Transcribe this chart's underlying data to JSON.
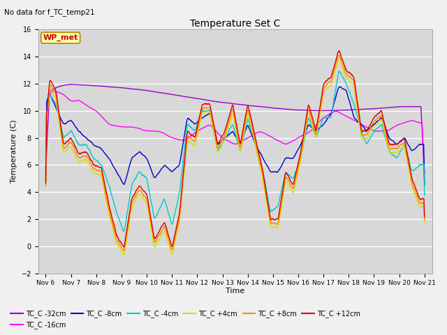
{
  "title": "Temperature Set C",
  "subtitle": "No data for f_TC_temp21",
  "xlabel": "Time",
  "ylabel": "Temperature (C)",
  "ylim": [
    -2,
    16
  ],
  "background_color": "#f0f0f0",
  "plot_bg_color": "#d8d8d8",
  "grid_color": "#ffffff",
  "wp_met_label": "WP_met",
  "legend_entries": [
    {
      "label": "TC_C -32cm",
      "color": "#9900cc"
    },
    {
      "label": "TC_C -16cm",
      "color": "#ff00ff"
    },
    {
      "label": "TC_C -8cm",
      "color": "#0000cc"
    },
    {
      "label": "TC_C -4cm",
      "color": "#00cccc"
    },
    {
      "label": "TC_C +4cm",
      "color": "#dddd00"
    },
    {
      "label": "TC_C +8cm",
      "color": "#ff8800"
    },
    {
      "label": "TC_C +12cm",
      "color": "#dd0000"
    }
  ],
  "xtick_labels": [
    "Nov 6",
    "Nov 7",
    "Nov 8",
    "Nov 9",
    "Nov 10",
    "Nov 11",
    "Nov 12",
    "Nov 13",
    "Nov 14",
    "Nov 15",
    "Nov 16",
    "Nov 17",
    "Nov 18",
    "Nov 19",
    "Nov 20",
    "Nov 21"
  ],
  "ytick_values": [
    -2,
    0,
    2,
    4,
    6,
    8,
    10,
    12,
    14,
    16
  ]
}
